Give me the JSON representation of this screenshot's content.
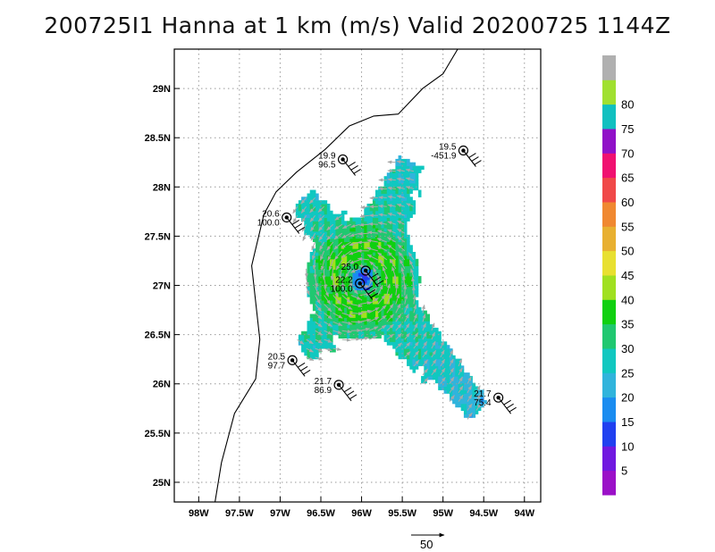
{
  "title": "200725I1 Hanna at 1 km (m/s) Valid 20200725 1144Z",
  "map": {
    "lon_range": [
      -98.3,
      -93.8
    ],
    "lat_range": [
      24.8,
      29.4
    ],
    "x_ticks": [
      {
        "lon": -98.0,
        "label": "98W"
      },
      {
        "lon": -97.5,
        "label": "97.5W"
      },
      {
        "lon": -97.0,
        "label": "97W"
      },
      {
        "lon": -96.5,
        "label": "96.5W"
      },
      {
        "lon": -96.0,
        "label": "96W"
      },
      {
        "lon": -95.5,
        "label": "95.5W"
      },
      {
        "lon": -95.0,
        "label": "95W"
      },
      {
        "lon": -94.5,
        "label": "94.5W"
      },
      {
        "lon": -94.0,
        "label": "94W"
      }
    ],
    "y_ticks": [
      {
        "lat": 25.0,
        "label": "25N"
      },
      {
        "lat": 25.5,
        "label": "25.5N"
      },
      {
        "lat": 26.0,
        "label": "26N"
      },
      {
        "lat": 26.5,
        "label": "26.5N"
      },
      {
        "lat": 27.0,
        "label": "27N"
      },
      {
        "lat": 27.5,
        "label": "27.5N"
      },
      {
        "lat": 28.0,
        "label": "28N"
      },
      {
        "lat": 28.5,
        "label": "28.5N"
      },
      {
        "lat": 29.0,
        "label": "29N"
      }
    ],
    "grid": true,
    "storm_center": {
      "lon": -96.0,
      "lat": 27.05
    }
  },
  "stations": [
    {
      "lon": -96.23,
      "lat": 28.28,
      "line1": "19.9",
      "line2": "96.5"
    },
    {
      "lon": -94.75,
      "lat": 28.37,
      "line1": "19.5",
      "line2": "-451.9"
    },
    {
      "lon": -96.92,
      "lat": 27.69,
      "line1": "20.6",
      "line2": "100.0"
    },
    {
      "lon": -95.95,
      "lat": 27.15,
      "line1": "25.0",
      "line2": ""
    },
    {
      "lon": -96.02,
      "lat": 27.02,
      "line1": "22.2",
      "line2": "100.0"
    },
    {
      "lon": -96.85,
      "lat": 26.24,
      "line1": "20.5",
      "line2": "97.7"
    },
    {
      "lon": -96.28,
      "lat": 25.99,
      "line1": "21.7",
      "line2": "86.9"
    },
    {
      "lon": -94.32,
      "lat": 25.86,
      "line1": "21.7",
      "line2": "75.4"
    }
  ],
  "colorbar": {
    "levels": [
      "5",
      "10",
      "15",
      "20",
      "25",
      "30",
      "35",
      "40",
      "45",
      "50",
      "55",
      "60",
      "65",
      "70",
      "75",
      "80"
    ],
    "colors": [
      "#9b10c8",
      "#7018e0",
      "#2040f0",
      "#1a8cf0",
      "#30b4dc",
      "#10c8c0",
      "#20c870",
      "#10d010",
      "#a0e020",
      "#e8e030",
      "#e8b030",
      "#f08830",
      "#f04848",
      "#f01070",
      "#9010c8",
      "#10c0c0",
      "#a0e030",
      "#b0b0b0"
    ]
  },
  "vector_key": {
    "label": "50"
  }
}
